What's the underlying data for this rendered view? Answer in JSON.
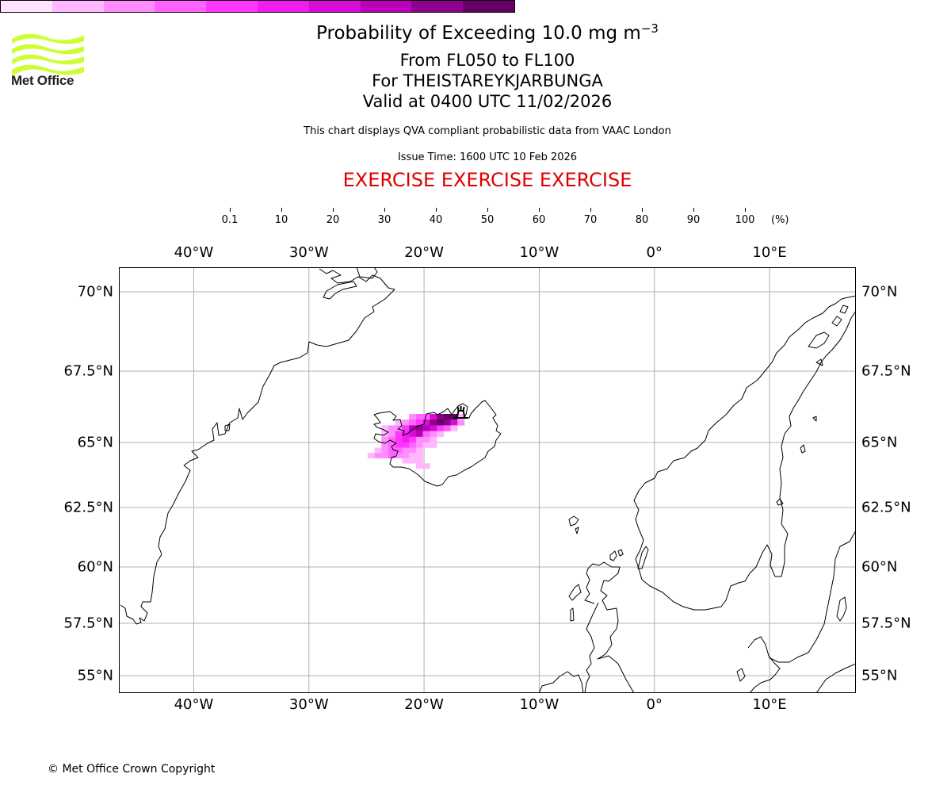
{
  "logo": {
    "text": "Met Office",
    "color": "#ccff33"
  },
  "header": {
    "title_main": "Probability of Exceeding 10.0 mg m",
    "title_superscript": "−3",
    "level_range": "From FL050 to FL100",
    "volcano": "For THEISTAREYKJARBUNGA",
    "valid_time": "Valid at 0400 UTC 11/02/2026",
    "subtitle": "This chart displays QVA compliant probabilistic data from VAAC London",
    "issue_time": "Issue Time: 1600 UTC 10 Feb 2026",
    "exercise_banner": "EXERCISE EXERCISE EXERCISE",
    "exercise_color": "#e00000"
  },
  "colorbar": {
    "unit": "(%)",
    "ticks": [
      "0.1",
      "10",
      "20",
      "30",
      "40",
      "50",
      "60",
      "70",
      "80",
      "90",
      "100"
    ],
    "colors": [
      "#ffe3ff",
      "#ffb8ff",
      "#ff8dff",
      "#ff62ff",
      "#ff37ff",
      "#f01cf0",
      "#d70cd7",
      "#bb00bb",
      "#8e008e",
      "#650065"
    ]
  },
  "map": {
    "extent_lon": [
      -46.5,
      17.5
    ],
    "extent_lat": [
      54.5,
      70.9
    ],
    "lon_ticks": [
      {
        "value": -40,
        "label": "40°W"
      },
      {
        "value": -30,
        "label": "30°W"
      },
      {
        "value": -20,
        "label": "20°W"
      },
      {
        "value": -10,
        "label": "10°W"
      },
      {
        "value": 0,
        "label": "0°"
      },
      {
        "value": 10,
        "label": "10°E"
      }
    ],
    "lat_ticks": [
      {
        "value": 70,
        "label": "70°N"
      },
      {
        "value": 67.5,
        "label": "67.5°N"
      },
      {
        "value": 65,
        "label": "65°N"
      },
      {
        "value": 62.5,
        "label": "62.5°N"
      },
      {
        "value": 60,
        "label": "60°N"
      },
      {
        "value": 57.5,
        "label": "57.5°N"
      },
      {
        "value": 55,
        "label": "55°N"
      }
    ],
    "grid_color": "#b0b0b0",
    "volcano_marker": {
      "lon": -16.8,
      "lat": 66.0
    },
    "probability_cells": [
      {
        "lon": -21.0,
        "lat": 65.9,
        "p": 20
      },
      {
        "lon": -20.4,
        "lat": 65.9,
        "p": 30
      },
      {
        "lon": -19.8,
        "lat": 65.9,
        "p": 30
      },
      {
        "lon": -19.2,
        "lat": 65.9,
        "p": 60
      },
      {
        "lon": -18.6,
        "lat": 65.9,
        "p": 80
      },
      {
        "lon": -18.0,
        "lat": 65.9,
        "p": 90
      },
      {
        "lon": -17.4,
        "lat": 65.9,
        "p": 90
      },
      {
        "lon": -16.8,
        "lat": 65.9,
        "p": 10
      },
      {
        "lon": -22.2,
        "lat": 65.7,
        "p": 10
      },
      {
        "lon": -21.6,
        "lat": 65.7,
        "p": 20
      },
      {
        "lon": -21.0,
        "lat": 65.7,
        "p": 30
      },
      {
        "lon": -20.4,
        "lat": 65.7,
        "p": 40
      },
      {
        "lon": -19.8,
        "lat": 65.7,
        "p": 60
      },
      {
        "lon": -19.2,
        "lat": 65.7,
        "p": 80
      },
      {
        "lon": -18.6,
        "lat": 65.7,
        "p": 90
      },
      {
        "lon": -18.0,
        "lat": 65.7,
        "p": 80
      },
      {
        "lon": -17.4,
        "lat": 65.7,
        "p": 60
      },
      {
        "lon": -16.8,
        "lat": 65.7,
        "p": 20
      },
      {
        "lon": -23.4,
        "lat": 65.5,
        "p": 10
      },
      {
        "lon": -22.8,
        "lat": 65.5,
        "p": 20
      },
      {
        "lon": -22.2,
        "lat": 65.5,
        "p": 20
      },
      {
        "lon": -21.6,
        "lat": 65.5,
        "p": 40
      },
      {
        "lon": -21.0,
        "lat": 65.5,
        "p": 70
      },
      {
        "lon": -20.4,
        "lat": 65.5,
        "p": 80
      },
      {
        "lon": -19.8,
        "lat": 65.5,
        "p": 70
      },
      {
        "lon": -19.2,
        "lat": 65.5,
        "p": 60
      },
      {
        "lon": -18.6,
        "lat": 65.5,
        "p": 40
      },
      {
        "lon": -18.0,
        "lat": 65.5,
        "p": 30
      },
      {
        "lon": -17.4,
        "lat": 65.5,
        "p": 10
      },
      {
        "lon": -23.4,
        "lat": 65.3,
        "p": 10
      },
      {
        "lon": -22.8,
        "lat": 65.3,
        "p": 20
      },
      {
        "lon": -22.2,
        "lat": 65.3,
        "p": 40
      },
      {
        "lon": -21.6,
        "lat": 65.3,
        "p": 50
      },
      {
        "lon": -21.0,
        "lat": 65.3,
        "p": 60
      },
      {
        "lon": -20.4,
        "lat": 65.3,
        "p": 70
      },
      {
        "lon": -19.8,
        "lat": 65.3,
        "p": 30
      },
      {
        "lon": -19.2,
        "lat": 65.3,
        "p": 20
      },
      {
        "lon": -18.6,
        "lat": 65.3,
        "p": 10
      },
      {
        "lon": -23.4,
        "lat": 65.1,
        "p": 20
      },
      {
        "lon": -22.8,
        "lat": 65.1,
        "p": 30
      },
      {
        "lon": -22.2,
        "lat": 65.1,
        "p": 40
      },
      {
        "lon": -21.6,
        "lat": 65.1,
        "p": 50
      },
      {
        "lon": -21.0,
        "lat": 65.1,
        "p": 40
      },
      {
        "lon": -20.4,
        "lat": 65.1,
        "p": 20
      },
      {
        "lon": -19.8,
        "lat": 65.1,
        "p": 20
      },
      {
        "lon": -19.2,
        "lat": 65.1,
        "p": 10
      },
      {
        "lon": -23.4,
        "lat": 64.9,
        "p": 20
      },
      {
        "lon": -22.8,
        "lat": 64.9,
        "p": 30
      },
      {
        "lon": -22.2,
        "lat": 64.9,
        "p": 40
      },
      {
        "lon": -21.6,
        "lat": 64.9,
        "p": 40
      },
      {
        "lon": -21.0,
        "lat": 64.9,
        "p": 30
      },
      {
        "lon": -20.4,
        "lat": 64.9,
        "p": 20
      },
      {
        "lon": -19.8,
        "lat": 64.9,
        "p": 10
      },
      {
        "lon": -19.2,
        "lat": 64.9,
        "p": 10
      },
      {
        "lon": -24.0,
        "lat": 64.7,
        "p": 10
      },
      {
        "lon": -23.4,
        "lat": 64.7,
        "p": 20
      },
      {
        "lon": -22.8,
        "lat": 64.7,
        "p": 30
      },
      {
        "lon": -22.2,
        "lat": 64.7,
        "p": 30
      },
      {
        "lon": -21.6,
        "lat": 64.7,
        "p": 20
      },
      {
        "lon": -21.0,
        "lat": 64.7,
        "p": 20
      },
      {
        "lon": -20.4,
        "lat": 64.7,
        "p": 10
      },
      {
        "lon": -24.6,
        "lat": 64.5,
        "p": 10
      },
      {
        "lon": -24.0,
        "lat": 64.5,
        "p": 20
      },
      {
        "lon": -23.4,
        "lat": 64.5,
        "p": 20
      },
      {
        "lon": -22.8,
        "lat": 64.5,
        "p": 30
      },
      {
        "lon": -22.2,
        "lat": 64.5,
        "p": 20
      },
      {
        "lon": -21.6,
        "lat": 64.5,
        "p": 20
      },
      {
        "lon": -21.0,
        "lat": 64.5,
        "p": 10
      },
      {
        "lon": -20.4,
        "lat": 64.5,
        "p": 10
      },
      {
        "lon": -21.6,
        "lat": 64.3,
        "p": 10
      },
      {
        "lon": -21.0,
        "lat": 64.3,
        "p": 10
      },
      {
        "lon": -20.4,
        "lat": 64.3,
        "p": 10
      },
      {
        "lon": -20.4,
        "lat": 64.1,
        "p": 10
      },
      {
        "lon": -19.8,
        "lat": 64.1,
        "p": 10
      }
    ]
  },
  "footer": {
    "copyright": "© Met Office Crown Copyright"
  }
}
